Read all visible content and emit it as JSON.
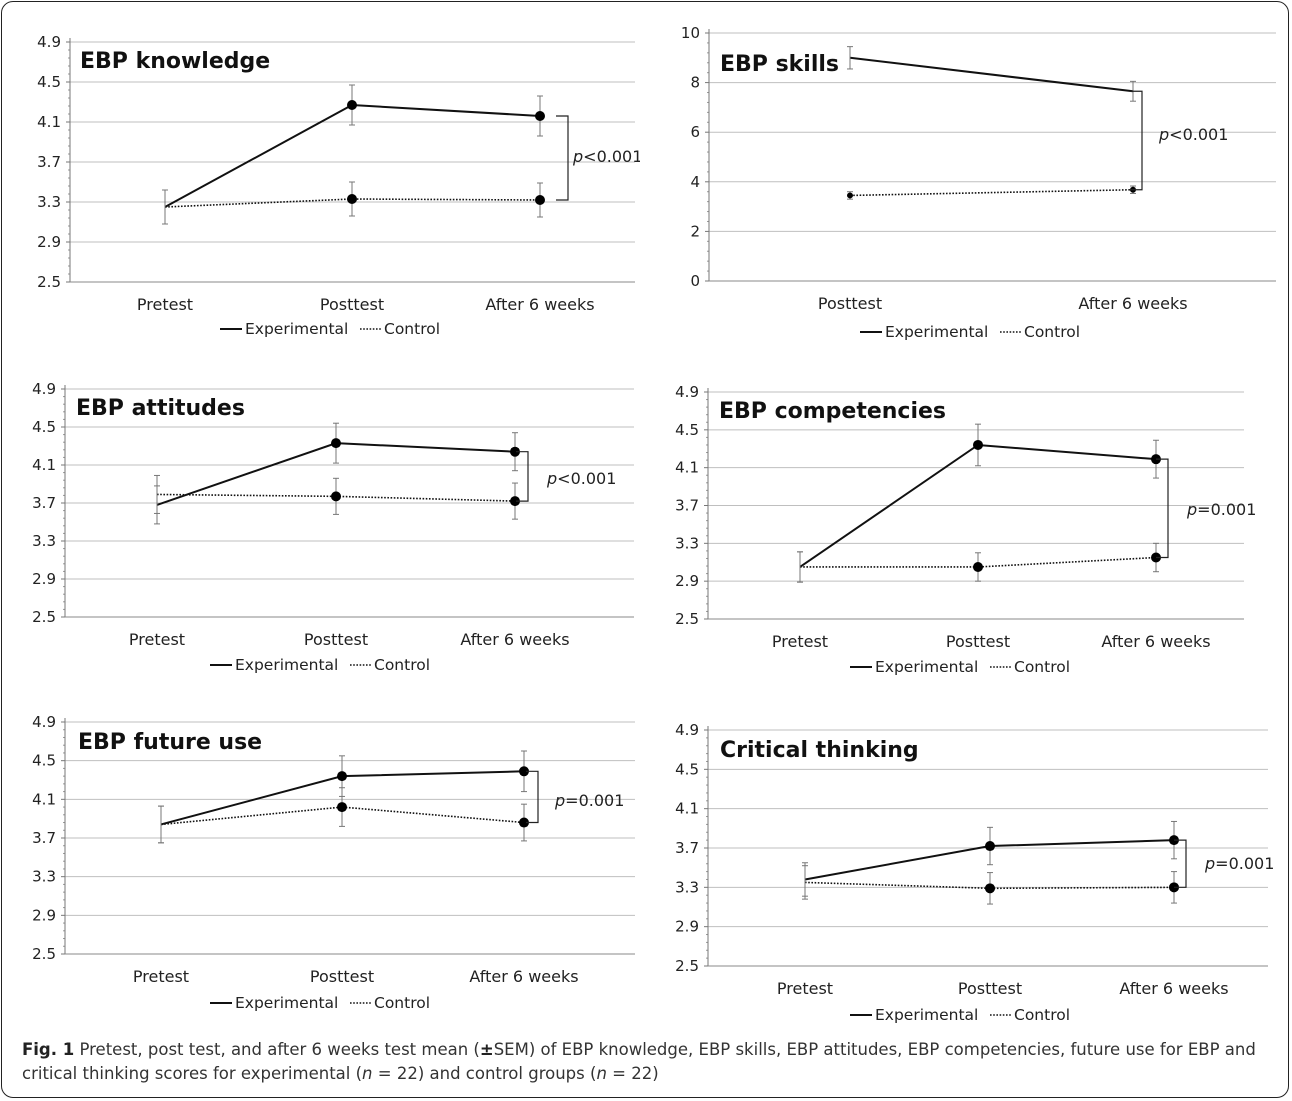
{
  "chart_data": [
    {
      "type": "line",
      "title": "EBP knowledge",
      "categories": [
        "Pretest",
        "Posttest",
        "After 6 weeks"
      ],
      "ylim": [
        2.5,
        4.9
      ],
      "yticks": [
        "2.5",
        "2.9",
        "3.3",
        "3.7",
        "4.1",
        "4.5",
        "4.9"
      ],
      "series": [
        {
          "name": "Experimental",
          "style": "solid",
          "values": [
            3.25,
            4.27,
            4.16
          ],
          "errors": [
            0.17,
            0.2,
            0.2
          ],
          "markers": [
            false,
            true,
            true
          ]
        },
        {
          "name": "Control",
          "style": "dotted",
          "values": [
            3.25,
            3.33,
            3.32
          ],
          "errors": [
            0.17,
            0.17,
            0.17
          ],
          "markers": [
            false,
            true,
            true
          ]
        }
      ],
      "annotation": {
        "prefix": "p",
        "text": "<0.001"
      },
      "legend": "bottom",
      "grid": true
    },
    {
      "type": "line",
      "title": "EBP skills",
      "categories": [
        "Posttest",
        "After 6 weeks"
      ],
      "ylim": [
        0,
        10
      ],
      "yticks": [
        "0",
        "2",
        "4",
        "6",
        "8",
        "10"
      ],
      "series": [
        {
          "name": "Experimental",
          "style": "solid",
          "values": [
            9.0,
            7.65
          ],
          "errors": [
            0.45,
            0.4
          ],
          "markers": [
            false,
            false
          ]
        },
        {
          "name": "Control",
          "style": "dotted",
          "values": [
            3.45,
            3.68
          ],
          "errors": [
            0.15,
            0.15
          ],
          "markers": [
            true,
            true
          ]
        }
      ],
      "annotation": {
        "prefix": "p",
        "text": "<0.001"
      },
      "legend": "bottom",
      "grid": true
    },
    {
      "type": "line",
      "title": "EBP attitudes",
      "categories": [
        "Pretest",
        "Posttest",
        "After 6 weeks"
      ],
      "ylim": [
        2.5,
        4.9
      ],
      "yticks": [
        "2.5",
        "2.9",
        "3.3",
        "3.7",
        "4.1",
        "4.5",
        "4.9"
      ],
      "series": [
        {
          "name": "Experimental",
          "style": "solid",
          "values": [
            3.68,
            4.33,
            4.24
          ],
          "errors": [
            0.2,
            0.21,
            0.2
          ],
          "markers": [
            false,
            true,
            true
          ]
        },
        {
          "name": "Control",
          "style": "dotted",
          "values": [
            3.79,
            3.77,
            3.72
          ],
          "errors": [
            0.2,
            0.19,
            0.19
          ],
          "markers": [
            false,
            true,
            true
          ]
        }
      ],
      "annotation": {
        "prefix": "p",
        "text": "<0.001"
      },
      "legend": "bottom",
      "grid": true
    },
    {
      "type": "line",
      "title": "EBP competencies",
      "categories": [
        "Pretest",
        "Posttest",
        "After 6 weeks"
      ],
      "ylim": [
        2.5,
        4.9
      ],
      "yticks": [
        "2.5",
        "2.9",
        "3.3",
        "3.7",
        "4.1",
        "4.5",
        "4.9"
      ],
      "series": [
        {
          "name": "Experimental",
          "style": "solid",
          "values": [
            3.05,
            4.34,
            4.19
          ],
          "errors": [
            0.16,
            0.22,
            0.2
          ],
          "markers": [
            false,
            true,
            true
          ]
        },
        {
          "name": "Control",
          "style": "dotted",
          "values": [
            3.05,
            3.05,
            3.15
          ],
          "errors": [
            0.16,
            0.15,
            0.15
          ],
          "markers": [
            false,
            true,
            true
          ]
        }
      ],
      "annotation": {
        "prefix": "p",
        "text": "=0.001"
      },
      "legend": "bottom",
      "grid": true
    },
    {
      "type": "line",
      "title": "EBP future use",
      "categories": [
        "Pretest",
        "Posttest",
        "After 6 weeks"
      ],
      "ylim": [
        2.5,
        4.9
      ],
      "yticks": [
        "2.5",
        "2.9",
        "3.3",
        "3.7",
        "4.1",
        "4.5",
        "4.9"
      ],
      "series": [
        {
          "name": "Experimental",
          "style": "solid",
          "values": [
            3.84,
            4.34,
            4.39
          ],
          "errors": [
            0.19,
            0.21,
            0.21
          ],
          "markers": [
            false,
            true,
            true
          ]
        },
        {
          "name": "Control",
          "style": "dotted",
          "values": [
            3.84,
            4.02,
            3.86
          ],
          "errors": [
            0.19,
            0.2,
            0.19
          ],
          "markers": [
            false,
            true,
            true
          ]
        }
      ],
      "annotation": {
        "prefix": "p",
        "text": "=0.001"
      },
      "legend": "bottom",
      "grid": true
    },
    {
      "type": "line",
      "title": "Critical thinking",
      "categories": [
        "Pretest",
        "Posttest",
        "After 6 weeks"
      ],
      "ylim": [
        2.5,
        4.9
      ],
      "yticks": [
        "2.5",
        "2.9",
        "3.3",
        "3.7",
        "4.1",
        "4.5",
        "4.9"
      ],
      "series": [
        {
          "name": "Experimental",
          "style": "solid",
          "values": [
            3.38,
            3.72,
            3.78
          ],
          "errors": [
            0.17,
            0.19,
            0.19
          ],
          "markers": [
            false,
            true,
            true
          ]
        },
        {
          "name": "Control",
          "style": "dotted",
          "values": [
            3.35,
            3.29,
            3.3
          ],
          "errors": [
            0.17,
            0.16,
            0.16
          ],
          "markers": [
            false,
            true,
            true
          ]
        }
      ],
      "annotation": {
        "prefix": "p",
        "text": "=0.001"
      },
      "legend": "bottom",
      "grid": true
    }
  ],
  "caption": {
    "label": "Fig. 1",
    "part1": " Pretest, post test, and after 6 weeks test mean (",
    "pm": "±",
    "part2": "SEM) of EBP knowledge, EBP skills, EBP attitudes, EBP competencies, future use for EBP and critical thinking scores for experimental (",
    "n1": "n",
    "part3": " = 22) and control groups (",
    "n2": "n",
    "part4": " = 22)"
  }
}
